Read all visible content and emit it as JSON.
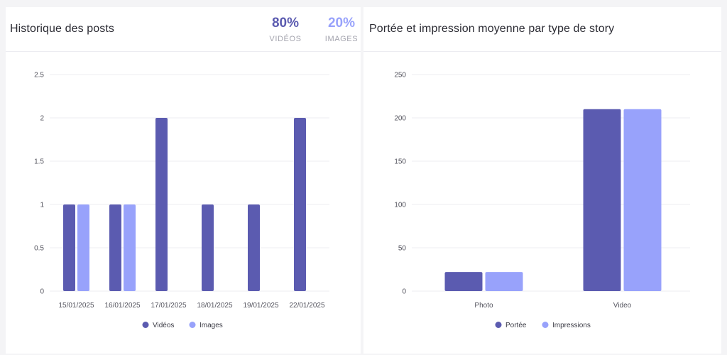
{
  "left_panel": {
    "title": "Historique des posts",
    "stats": [
      {
        "value": "80%",
        "label": "VIDÉOS",
        "color": "#5b5bb0"
      },
      {
        "value": "20%",
        "label": "IMAGES",
        "color": "#98a2fb"
      }
    ]
  },
  "right_panel": {
    "title": "Portée et impression moyenne par type de story"
  },
  "chart_data": [
    {
      "type": "bar",
      "categories": [
        "15/01/2025",
        "16/01/2025",
        "17/01/2025",
        "18/01/2025",
        "19/01/2025",
        "22/01/2025"
      ],
      "series": [
        {
          "name": "Vidéos",
          "values": [
            1,
            1,
            2,
            1,
            1,
            2
          ],
          "color": "#5b5bb0"
        },
        {
          "name": "Images",
          "values": [
            1,
            1,
            0,
            0,
            0,
            0
          ],
          "color": "#98a2fb"
        }
      ],
      "yticks": [
        "0",
        "0.5",
        "1",
        "1.5",
        "2",
        "2.5"
      ],
      "ylim": [
        0,
        2.5
      ],
      "grid": true,
      "legend": "bottom-center"
    },
    {
      "type": "bar",
      "categories": [
        "Photo",
        "Video"
      ],
      "series": [
        {
          "name": "Portée",
          "values": [
            22,
            210
          ],
          "color": "#5b5bb0"
        },
        {
          "name": "Impressions",
          "values": [
            22,
            210
          ],
          "color": "#98a2fb"
        }
      ],
      "yticks": [
        "0",
        "50",
        "100",
        "150",
        "200",
        "250"
      ],
      "ylim": [
        0,
        250
      ],
      "grid": true,
      "legend": "bottom-center"
    }
  ]
}
